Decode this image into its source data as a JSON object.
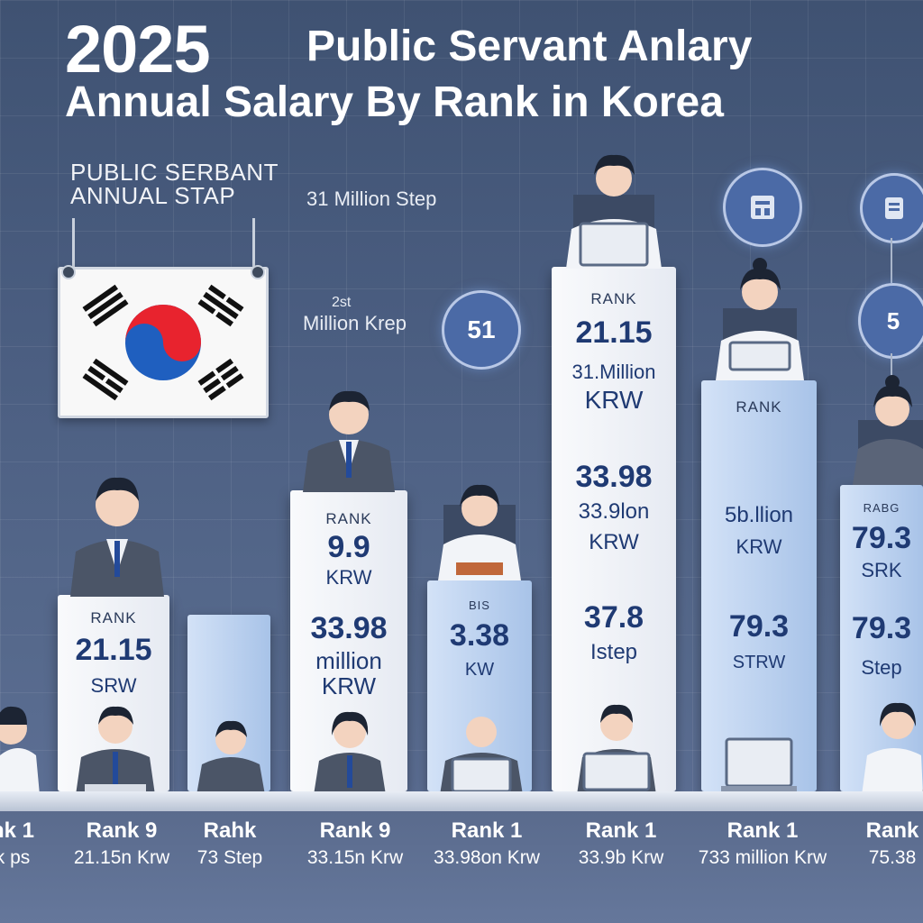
{
  "title": {
    "year": "2025",
    "rest": "Public Servant Anlary",
    "line2": "Annual Salary By Rank in Korea"
  },
  "plaque": {
    "line1": "PUBLIC SERBANT",
    "line2": "ANNUAL STAP"
  },
  "notes": {
    "top": "31 Million Step",
    "mid_small": "2st",
    "mid": "Million Krep"
  },
  "bubbles": {
    "b1": "51",
    "b3": "5"
  },
  "colors": {
    "flag_red": "#e8232e",
    "flag_blue": "#1f5fbf",
    "pillar_text": "#1f3a73"
  },
  "icons": {
    "b2": "document-icon",
    "b4": "document-icon"
  },
  "pillars": [
    {
      "l1": "RANK",
      "l2": "21.15",
      "l3": "SRW"
    },
    {},
    {
      "l1": "RANK",
      "l2": "9.9",
      "l3": "KRW",
      "l4": "33.98",
      "l5": "million",
      "l6": "KRW"
    },
    {
      "l2": "3.38",
      "l3": "KW",
      "l4_small": "BIS"
    },
    {
      "l1": "RANK",
      "l2": "21.15",
      "l3": "31.Million",
      "l4": "KRW",
      "l5": "33.98",
      "l6": "33.9lon",
      "l7": "KRW",
      "l8": "37.8",
      "l9": "Istep"
    },
    {
      "l1": "RANK",
      "l2": "5b.llion",
      "l3": "KRW",
      "l4": "79.3",
      "l5": "STRW"
    },
    {
      "l1": "RABG",
      "l2": "79.3",
      "l3": "SRK",
      "l4": "79.3",
      "l5": "Step"
    }
  ],
  "labels": [
    {
      "rank": "nk 1",
      "value": "k ps"
    },
    {
      "rank": "Rank 9",
      "value": "21.15n Krw"
    },
    {
      "rank": "Rahk",
      "value": "73 Step"
    },
    {
      "rank": "Rank 9",
      "value": "33.15n Krw"
    },
    {
      "rank": "Rank 1",
      "value": "33.98on Krw"
    },
    {
      "rank": "Rank 1",
      "value": "33.9b Krw"
    },
    {
      "rank": "Rank 1",
      "value": "733 million Krw"
    },
    {
      "rank": "Rank",
      "value": "75.38"
    }
  ]
}
